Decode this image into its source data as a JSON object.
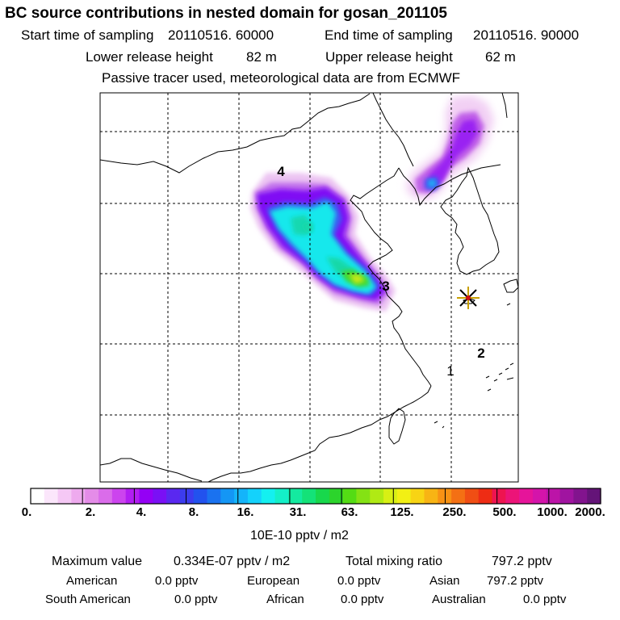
{
  "title": "BC  source contributions in nested domain for gosan_201105",
  "header": {
    "start_label": "Start time of sampling",
    "start_value": "20110516. 60000",
    "end_label": "End time of sampling",
    "end_value": "20110516. 90000",
    "lower_label": "Lower release height",
    "lower_value": "82 m",
    "upper_label": "Upper release height",
    "upper_value": "62 m",
    "note": "Passive tracer used, meteorological data are from ECMWF"
  },
  "map": {
    "region_labels": [
      "4",
      "3",
      "2",
      "1"
    ],
    "receptor_marker": "gosan-star"
  },
  "colorbar": {
    "ticks": [
      "0.",
      "2.",
      "4.",
      "8.",
      "16.",
      "31.",
      "63.",
      "125.",
      "250.",
      "500.",
      "1000.",
      "2000."
    ],
    "unit_label": "10E-10 pptv / m2",
    "colors": [
      "#ffffff",
      "#fbe6fb",
      "#f5c8f5",
      "#eeaaee",
      "#e48ce8",
      "#da6cea",
      "#cc44ee",
      "#b21ef2",
      "#9400f5",
      "#7a10f5",
      "#5a28f0",
      "#3c3cee",
      "#2252ee",
      "#1a72f0",
      "#1496f5",
      "#14b4fa",
      "#14d2fc",
      "#14f0f0",
      "#14f0c8",
      "#14eaa0",
      "#14e278",
      "#18d84c",
      "#2cd42c",
      "#54dc14",
      "#84e214",
      "#b0ea14",
      "#d8f014",
      "#f2f014",
      "#f8d414",
      "#f8b414",
      "#f89214",
      "#f47014",
      "#f04e14",
      "#ee2c14",
      "#ee1450",
      "#ec1478",
      "#e6149a",
      "#d414aa",
      "#bc14a8",
      "#a014a0",
      "#82148e",
      "#641478"
    ]
  },
  "stats": {
    "max_label": "Maximum value",
    "max_value": "0.334E-07 pptv / m2",
    "total_label": "Total mixing ratio",
    "total_value": "797.2 pptv"
  },
  "sources": [
    {
      "name": "American",
      "value": "0.0 pptv"
    },
    {
      "name": "European",
      "value": "0.0 pptv"
    },
    {
      "name": "Asian",
      "value": "797.2 pptv"
    },
    {
      "name": "South American",
      "value": "0.0 pptv"
    },
    {
      "name": "African",
      "value": "0.0 pptv"
    },
    {
      "name": "Australian",
      "value": "0.0 pptv"
    }
  ]
}
